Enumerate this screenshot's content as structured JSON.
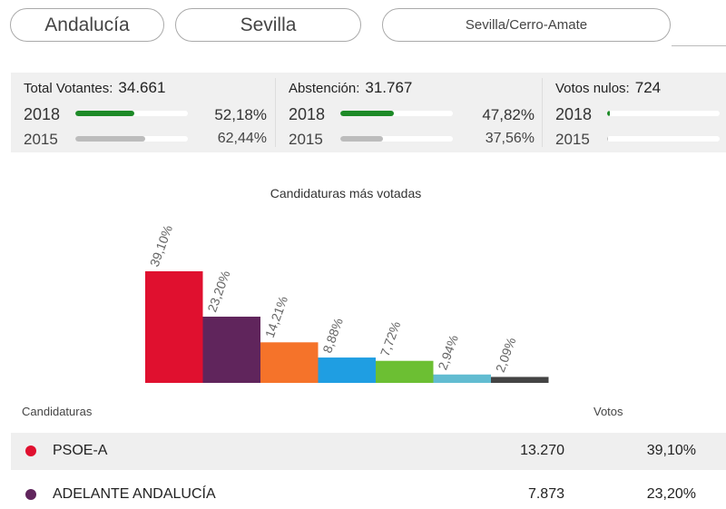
{
  "selectors": {
    "region": "Andalucía",
    "province": "Sevilla",
    "district": "Sevilla/Cerro-Amate"
  },
  "stats": [
    {
      "label": "Total Votantes:",
      "value": "34.661",
      "y2018": "2018",
      "y2015": "2015",
      "p2018": "52,18%",
      "p2015": "62,44%",
      "f2018": 52.18,
      "f2015": 62.44
    },
    {
      "label": "Abstención:",
      "value": "31.767",
      "y2018": "2018",
      "y2015": "2015",
      "p2018": "47,82%",
      "p2015": "37,56%",
      "f2018": 47.82,
      "f2015": 37.56
    },
    {
      "label": "Votos nulos:",
      "value": "724",
      "y2018": "2018",
      "y2015": "2015",
      "f2018": 2.1,
      "f2015": 1.0
    }
  ],
  "chart_data": {
    "type": "bar",
    "title": "Candidaturas más votadas",
    "values": [
      39.1,
      23.2,
      14.21,
      8.88,
      7.72,
      2.94,
      2.09
    ],
    "labels": [
      "39,10%",
      "23,20%",
      "14,21%",
      "8,88%",
      "7,72%",
      "2,94%",
      "2,09%"
    ],
    "colors": [
      "#e0102f",
      "#60255c",
      "#f5732a",
      "#1f9ee2",
      "#6cbf33",
      "#62bcd1",
      "#444444"
    ]
  },
  "table": {
    "col_candidaturas": "Candidaturas",
    "col_votos": "Votos",
    "rows": [
      {
        "name": "PSOE-A",
        "votes": "13.270",
        "pct": "39,10%",
        "color": "#e0102f"
      },
      {
        "name": "ADELANTE ANDALUCÍA",
        "votes": "7.873",
        "pct": "23,20%",
        "color": "#60255c"
      }
    ]
  }
}
